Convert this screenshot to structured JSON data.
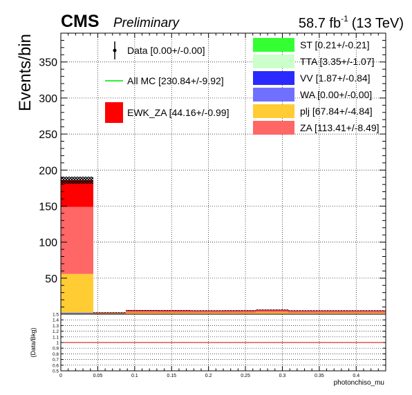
{
  "header": {
    "experiment": "CMS",
    "status": "Preliminary",
    "lumi_prefix": "58.7 fb",
    "lumi_exp": "-1",
    "lumi_suffix": "(13 TeV)"
  },
  "colors": {
    "ST": "#33ff33",
    "TTA": "#ccffcc",
    "VV": "#2a2aff",
    "WA": "#7070ff",
    "plj": "#ffcc33",
    "ZA": "#ff6666",
    "EWK_ZA": "#ff0000",
    "allmc_line": "#33ee33",
    "ratio_line": "#cc0000"
  },
  "chart_data": [
    {
      "type": "bar",
      "stacked": true,
      "title": "",
      "xlabel": "",
      "ylabel": "Events/bin",
      "xlim": [
        0,
        0.44
      ],
      "ylim": [
        0,
        390
      ],
      "grid": true,
      "legend_placement": "top",
      "bin_edges": [
        0,
        0.044,
        0.088,
        0.132,
        0.176,
        0.22,
        0.264,
        0.308,
        0.352,
        0.396,
        0.44
      ],
      "y_ticks": [
        50,
        100,
        150,
        200,
        250,
        300,
        350
      ],
      "series": [
        {
          "name": "ST [0.21+/-0.21]",
          "key": "ST",
          "values": [
            0.1,
            0.0,
            0.0,
            0.0,
            0.0,
            0.0,
            0.0,
            0.0,
            0.0,
            0.0
          ]
        },
        {
          "name": "TTA [3.35+/-1.07]",
          "key": "TTA",
          "values": [
            1.0,
            0.3,
            0.3,
            0.3,
            0.3,
            0.3,
            0.3,
            0.2,
            0.2,
            0.2
          ]
        },
        {
          "name": "VV [1.87+/-0.84]",
          "key": "VV",
          "values": [
            0.8,
            0.1,
            0.1,
            0.1,
            0.1,
            0.1,
            0.1,
            0.1,
            0.1,
            0.1
          ]
        },
        {
          "name": "WA [0.00+/-0.00]",
          "key": "WA",
          "values": [
            0.0,
            0.0,
            0.0,
            0.0,
            0.0,
            0.0,
            0.0,
            0.0,
            0.0,
            0.0
          ]
        },
        {
          "name": "plj [67.84+/-4.84]",
          "key": "plj",
          "values": [
            54.0,
            0.5,
            1.5,
            1.5,
            1.5,
            1.5,
            2.0,
            1.5,
            1.5,
            1.5
          ]
        },
        {
          "name": "ZA [113.41+/-8.49]",
          "key": "ZA",
          "values": [
            93.0,
            0.9,
            2.5,
            2.4,
            2.3,
            2.4,
            2.6,
            2.4,
            2.4,
            2.4
          ]
        },
        {
          "name": "EWK_ZA [44.16+/-0.99]",
          "key": "EWK_ZA",
          "values": [
            37.0,
            0.4,
            0.9,
            0.9,
            0.8,
            0.8,
            1.0,
            0.8,
            0.8,
            0.8
          ]
        }
      ],
      "legend_extra": [
        {
          "label": "Data [0.00+/-0.00]",
          "kind": "data-marker"
        },
        {
          "label": "All MC [230.84+/-9.92]",
          "kind": "line"
        }
      ]
    },
    {
      "type": "line",
      "title": "",
      "xlabel": "photonchiso_mu",
      "ylabel": "(Data/Bkg)",
      "xlim": [
        0,
        0.44
      ],
      "ylim": [
        0.5,
        1.5
      ],
      "grid": true,
      "reference_value": 1.0,
      "y_tick_labels": [
        "1.5",
        "1.4",
        "1.3",
        "1.2",
        "1.1",
        "1",
        "0.9",
        "0.8",
        "0.7",
        "0.6",
        "0.5"
      ],
      "y_tick_values": [
        1.5,
        1.4,
        1.3,
        1.2,
        1.1,
        1.0,
        0.9,
        0.8,
        0.7,
        0.6,
        0.5
      ],
      "x_tick_labels": [
        "0",
        "0.05",
        "0.1",
        "0.15",
        "0.2",
        "0.25",
        "0.3",
        "0.35",
        "0.4"
      ],
      "x_tick_values": [
        0,
        0.05,
        0.1,
        0.15,
        0.2,
        0.25,
        0.3,
        0.35,
        0.4
      ]
    }
  ]
}
